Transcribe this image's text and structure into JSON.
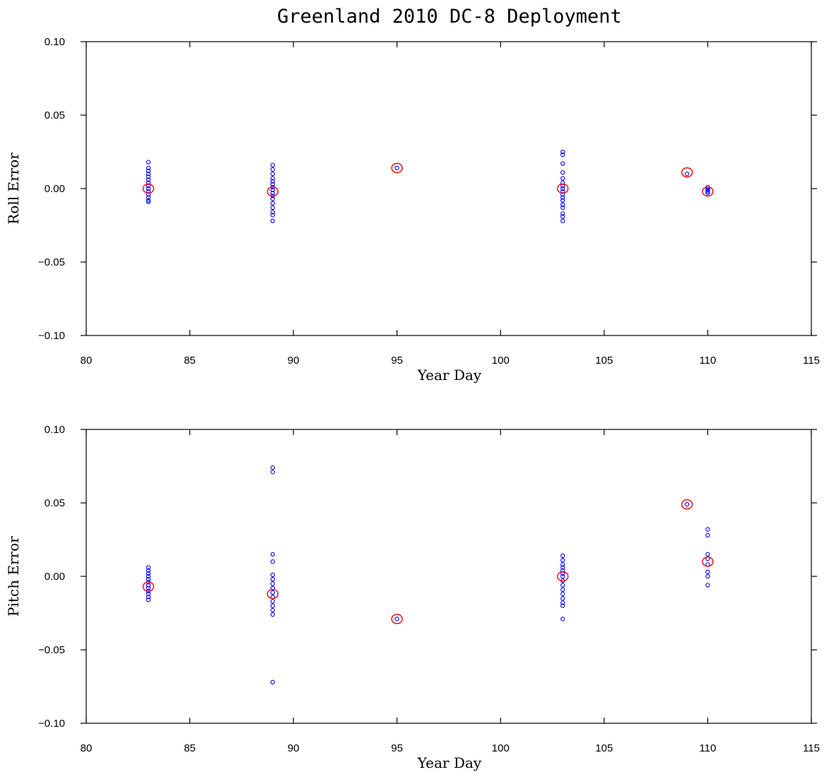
{
  "figure": {
    "title": "Greenland 2010 DC-8 Deployment"
  },
  "chart_data": [
    {
      "type": "scatter",
      "title": "",
      "xlabel": "Year Day",
      "ylabel": "Roll Error",
      "xlim": [
        80,
        115
      ],
      "ylim": [
        -0.1,
        0.1
      ],
      "x_ticks": [
        "80",
        "85",
        "90",
        "95",
        "100",
        "105",
        "110",
        "115"
      ],
      "y_ticks": [
        "0.10",
        "0.05",
        "0.00",
        "−0.05",
        "−0.10"
      ],
      "point_color": "#0000ff",
      "mean_color": "#ff0000",
      "series": [
        {
          "kind": "samples",
          "x": 83,
          "values": [
            0.018,
            0.014,
            0.012,
            0.01,
            0.008,
            0.006,
            0.004,
            0.002,
            0.0,
            -0.002,
            -0.004,
            -0.006,
            -0.008,
            -0.009
          ]
        },
        {
          "kind": "samples",
          "x": 89,
          "values": [
            0.016,
            0.013,
            0.01,
            0.007,
            0.005,
            0.003,
            0.001,
            -0.001,
            -0.003,
            -0.005,
            -0.007,
            -0.01,
            -0.013,
            -0.016,
            -0.018,
            -0.022
          ]
        },
        {
          "kind": "samples",
          "x": 95,
          "values": [
            0.014
          ]
        },
        {
          "kind": "samples",
          "x": 103,
          "values": [
            0.025,
            0.023,
            0.017,
            0.011,
            0.007,
            0.004,
            0.002,
            0.0,
            -0.002,
            -0.004,
            -0.006,
            -0.008,
            -0.011,
            -0.013,
            -0.017,
            -0.019,
            -0.022
          ]
        },
        {
          "kind": "samples",
          "x": 109,
          "values": [
            0.01
          ]
        },
        {
          "kind": "samples",
          "x": 110,
          "values": [
            0.001,
            0.0,
            -0.001,
            -0.002,
            -0.003
          ]
        },
        {
          "kind": "means",
          "x": [
            83,
            89,
            95,
            103,
            109,
            110
          ],
          "values": [
            0.0,
            -0.002,
            0.014,
            0.0,
            0.011,
            -0.002
          ]
        }
      ]
    },
    {
      "type": "scatter",
      "title": "",
      "xlabel": "Year Day",
      "ylabel": "Pitch Error",
      "xlim": [
        80,
        115
      ],
      "ylim": [
        -0.1,
        0.1
      ],
      "x_ticks": [
        "80",
        "85",
        "90",
        "95",
        "100",
        "105",
        "110",
        "115"
      ],
      "y_ticks": [
        "0.10",
        "0.05",
        "0.00",
        "−0.05",
        "−0.10"
      ],
      "point_color": "#0000ff",
      "mean_color": "#ff0000",
      "series": [
        {
          "kind": "samples",
          "x": 83,
          "values": [
            0.006,
            0.004,
            0.002,
            0.0,
            -0.002,
            -0.004,
            -0.006,
            -0.008,
            -0.01,
            -0.012,
            -0.014,
            -0.016
          ]
        },
        {
          "kind": "samples",
          "x": 89,
          "values": [
            0.074,
            0.071,
            0.015,
            0.01,
            0.001,
            -0.002,
            -0.005,
            -0.008,
            -0.011,
            -0.014,
            -0.017,
            -0.02,
            -0.023,
            -0.026,
            -0.072
          ]
        },
        {
          "kind": "samples",
          "x": 95,
          "values": [
            -0.029
          ]
        },
        {
          "kind": "samples",
          "x": 103,
          "values": [
            0.014,
            0.011,
            0.008,
            0.006,
            0.004,
            0.002,
            0.0,
            -0.003,
            -0.006,
            -0.009,
            -0.012,
            -0.015,
            -0.018,
            -0.02,
            -0.029
          ]
        },
        {
          "kind": "samples",
          "x": 109,
          "values": [
            0.049
          ]
        },
        {
          "kind": "samples",
          "x": 110,
          "values": [
            0.032,
            0.028,
            0.015,
            0.012,
            0.008,
            0.003,
            0.0,
            -0.006
          ]
        },
        {
          "kind": "means",
          "x": [
            83,
            89,
            95,
            103,
            109,
            110
          ],
          "values": [
            -0.007,
            -0.012,
            -0.029,
            0.0,
            0.049,
            0.01
          ]
        }
      ]
    }
  ]
}
